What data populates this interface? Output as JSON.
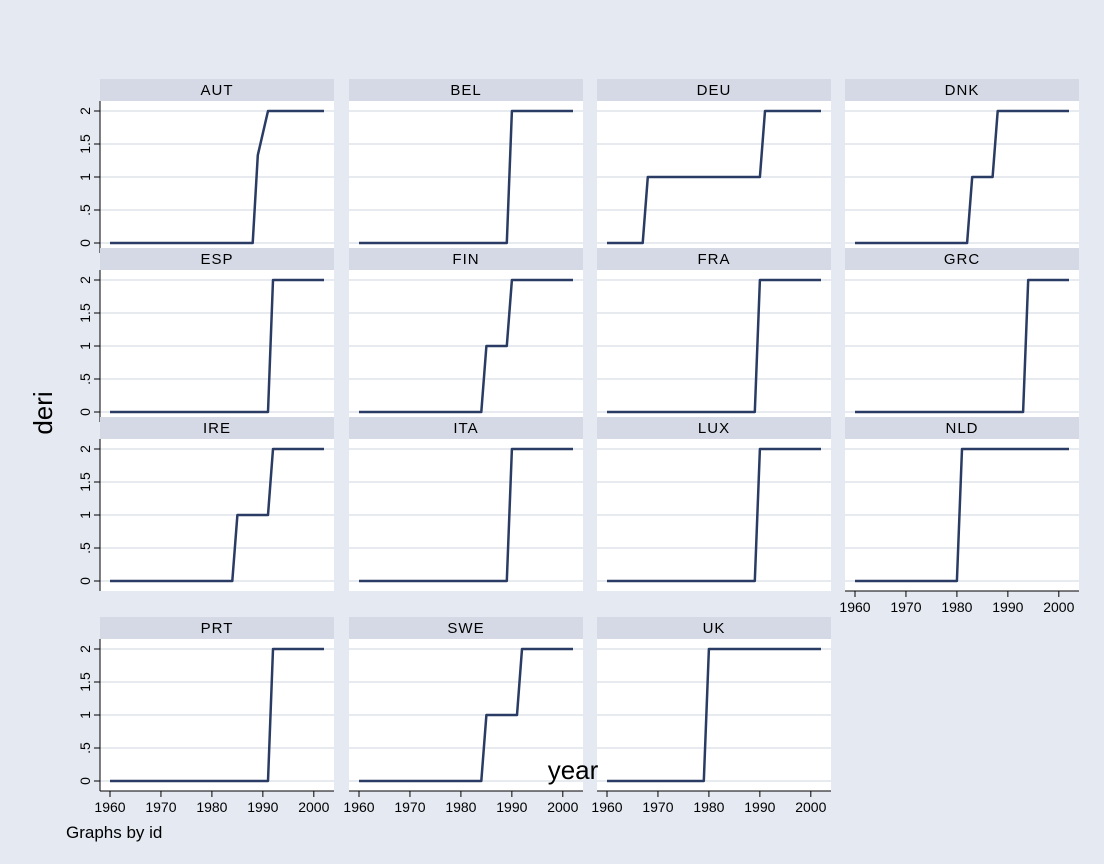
{
  "chart_data": {
    "type": "line",
    "by_variable_note": "Graphs by id",
    "xlabel": "year",
    "ylabel": "deri",
    "xlim": [
      1960,
      2002
    ],
    "ylim": [
      0,
      2
    ],
    "xticks": [
      1960,
      1970,
      1980,
      1990,
      2000
    ],
    "yticks": [
      0,
      0.5,
      1,
      1.5,
      2
    ],
    "ytick_labels": [
      "0",
      ".5",
      "1",
      "1.5",
      "2"
    ],
    "grid": true,
    "colors": {
      "outer_background": "#e5e9f2",
      "plot_background": "#ffffff",
      "strip": "#d4d9e5",
      "grid": "#dfe3ea",
      "line": "#2a3c64"
    },
    "panels": [
      {
        "name": "AUT",
        "x": [
          1960,
          1988,
          1989,
          1991,
          2002
        ],
        "y": [
          0,
          0,
          1.33,
          2,
          2
        ]
      },
      {
        "name": "BEL",
        "x": [
          1960,
          1989,
          1990,
          2002
        ],
        "y": [
          0,
          0,
          2,
          2
        ]
      },
      {
        "name": "DEU",
        "x": [
          1960,
          1967,
          1968,
          1990,
          1991,
          2002
        ],
        "y": [
          0,
          0,
          1,
          1,
          2,
          2
        ]
      },
      {
        "name": "DNK",
        "x": [
          1960,
          1982,
          1983,
          1987,
          1988,
          2002
        ],
        "y": [
          0,
          0,
          1,
          1,
          2,
          2
        ]
      },
      {
        "name": "ESP",
        "x": [
          1960,
          1991,
          1992,
          2002
        ],
        "y": [
          0,
          0,
          2,
          2
        ]
      },
      {
        "name": "FIN",
        "x": [
          1960,
          1984,
          1985,
          1989,
          1990,
          2002
        ],
        "y": [
          0,
          0,
          1,
          1,
          2,
          2
        ]
      },
      {
        "name": "FRA",
        "x": [
          1960,
          1989,
          1990,
          2002
        ],
        "y": [
          0,
          0,
          2,
          2
        ]
      },
      {
        "name": "GRC",
        "x": [
          1960,
          1993,
          1994,
          2002
        ],
        "y": [
          0,
          0,
          2,
          2
        ]
      },
      {
        "name": "IRE",
        "x": [
          1960,
          1984,
          1985,
          1991,
          1992,
          2002
        ],
        "y": [
          0,
          0,
          1,
          1,
          2,
          2
        ]
      },
      {
        "name": "ITA",
        "x": [
          1960,
          1989,
          1990,
          2002
        ],
        "y": [
          0,
          0,
          2,
          2
        ]
      },
      {
        "name": "LUX",
        "x": [
          1960,
          1989,
          1990,
          2002
        ],
        "y": [
          0,
          0,
          2,
          2
        ]
      },
      {
        "name": "NLD",
        "x": [
          1960,
          1980,
          1981,
          2002
        ],
        "y": [
          0,
          0,
          2,
          2
        ]
      },
      {
        "name": "PRT",
        "x": [
          1960,
          1991,
          1992,
          2002
        ],
        "y": [
          0,
          0,
          2,
          2
        ]
      },
      {
        "name": "SWE",
        "x": [
          1960,
          1984,
          1985,
          1991,
          1992,
          2002
        ],
        "y": [
          0,
          0,
          1,
          1,
          2,
          2
        ]
      },
      {
        "name": "UK",
        "x": [
          1960,
          1979,
          1980,
          2002
        ],
        "y": [
          0,
          0,
          2,
          2
        ]
      }
    ]
  }
}
